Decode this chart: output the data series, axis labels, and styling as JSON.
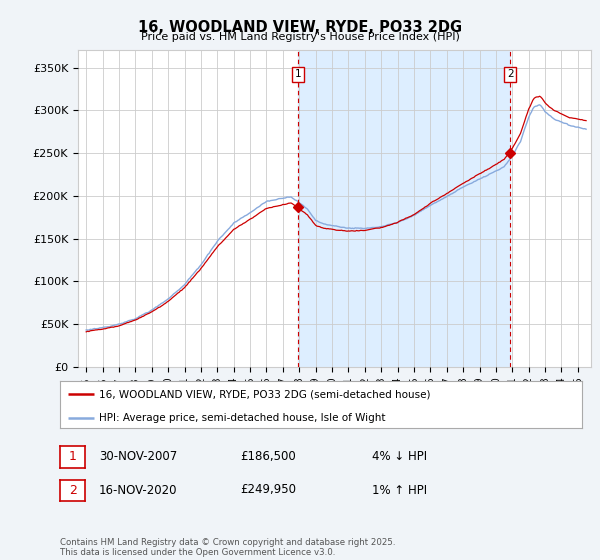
{
  "title": "16, WOODLAND VIEW, RYDE, PO33 2DG",
  "subtitle": "Price paid vs. HM Land Registry's House Price Index (HPI)",
  "legend_label_red": "16, WOODLAND VIEW, RYDE, PO33 2DG (semi-detached house)",
  "legend_label_blue": "HPI: Average price, semi-detached house, Isle of Wight",
  "annotation1_label": "1",
  "annotation1_date": "30-NOV-2007",
  "annotation1_price": "£186,500",
  "annotation1_hpi": "4% ↓ HPI",
  "annotation1_year": 2007.917,
  "annotation1_value": 186500,
  "annotation2_label": "2",
  "annotation2_date": "16-NOV-2020",
  "annotation2_price": "£249,950",
  "annotation2_hpi": "1% ↑ HPI",
  "annotation2_year": 2020.875,
  "annotation2_value": 249950,
  "ylabel_ticks": [
    "£0",
    "£50K",
    "£100K",
    "£150K",
    "£200K",
    "£250K",
    "£300K",
    "£350K"
  ],
  "ytick_values": [
    0,
    50000,
    100000,
    150000,
    200000,
    250000,
    300000,
    350000
  ],
  "ylim": [
    0,
    370000
  ],
  "xlim_start": 1994.5,
  "xlim_end": 2025.8,
  "footer": "Contains HM Land Registry data © Crown copyright and database right 2025.\nThis data is licensed under the Open Government Licence v3.0.",
  "bg_color": "#f0f4f8",
  "plot_bg_color": "#ffffff",
  "grid_color": "#cccccc",
  "red_color": "#cc0000",
  "blue_color": "#88aadd",
  "shade_color": "#ddeeff",
  "vline_color": "#cc0000",
  "annotation_box_color": "#cc0000"
}
